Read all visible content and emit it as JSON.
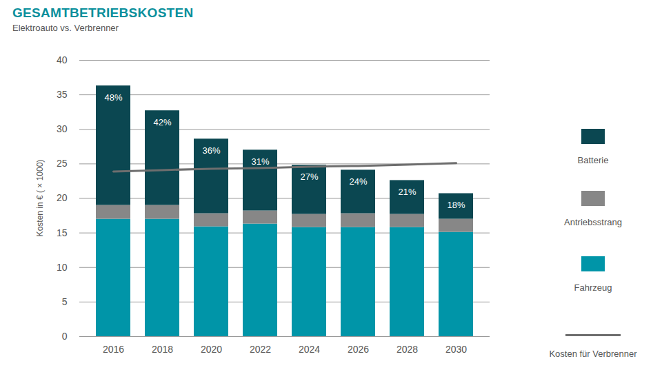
{
  "chart_data": {
    "type": "bar",
    "stacked": true,
    "title": "GESAMTBETRIEBSKOSTEN",
    "subtitle": "Elektroauto vs. Verbrenner",
    "y_label": "Kosten in € ( × 1000)",
    "categories": [
      "2016",
      "2018",
      "2020",
      "2022",
      "2024",
      "2026",
      "2028",
      "2030"
    ],
    "series": [
      {
        "name": "Fahrzeug",
        "type": "bar",
        "color": "#0095a8",
        "values": [
          17.0,
          17.0,
          15.9,
          16.3,
          15.8,
          15.8,
          15.8,
          15.1
        ]
      },
      {
        "name": "Antriebsstrang",
        "type": "bar",
        "color": "#878787",
        "values": [
          2.0,
          2.0,
          1.9,
          1.9,
          1.9,
          2.0,
          1.9,
          1.9
        ]
      },
      {
        "name": "Batterie",
        "type": "bar",
        "color": "#0b4751",
        "values": [
          17.3,
          13.7,
          10.8,
          8.8,
          7.1,
          6.3,
          4.9,
          3.7
        ]
      },
      {
        "name": "Kosten für Verbrenner",
        "type": "line",
        "color": "#6e6e6e",
        "values": [
          23.9,
          24.1,
          24.3,
          24.4,
          24.6,
          24.7,
          24.9,
          25.1
        ]
      }
    ],
    "annotations": [
      {
        "category": "2016",
        "text": "48%"
      },
      {
        "category": "2018",
        "text": "42%"
      },
      {
        "category": "2020",
        "text": "36%"
      },
      {
        "category": "2022",
        "text": "31%"
      },
      {
        "category": "2024",
        "text": "27%"
      },
      {
        "category": "2026",
        "text": "24%"
      },
      {
        "category": "2028",
        "text": "21%"
      },
      {
        "category": "2030",
        "text": "18%"
      }
    ],
    "ylim": [
      0,
      40
    ],
    "yticks": [
      0,
      5,
      10,
      15,
      20,
      25,
      30,
      35,
      40
    ],
    "grid": true,
    "legend": "right"
  }
}
